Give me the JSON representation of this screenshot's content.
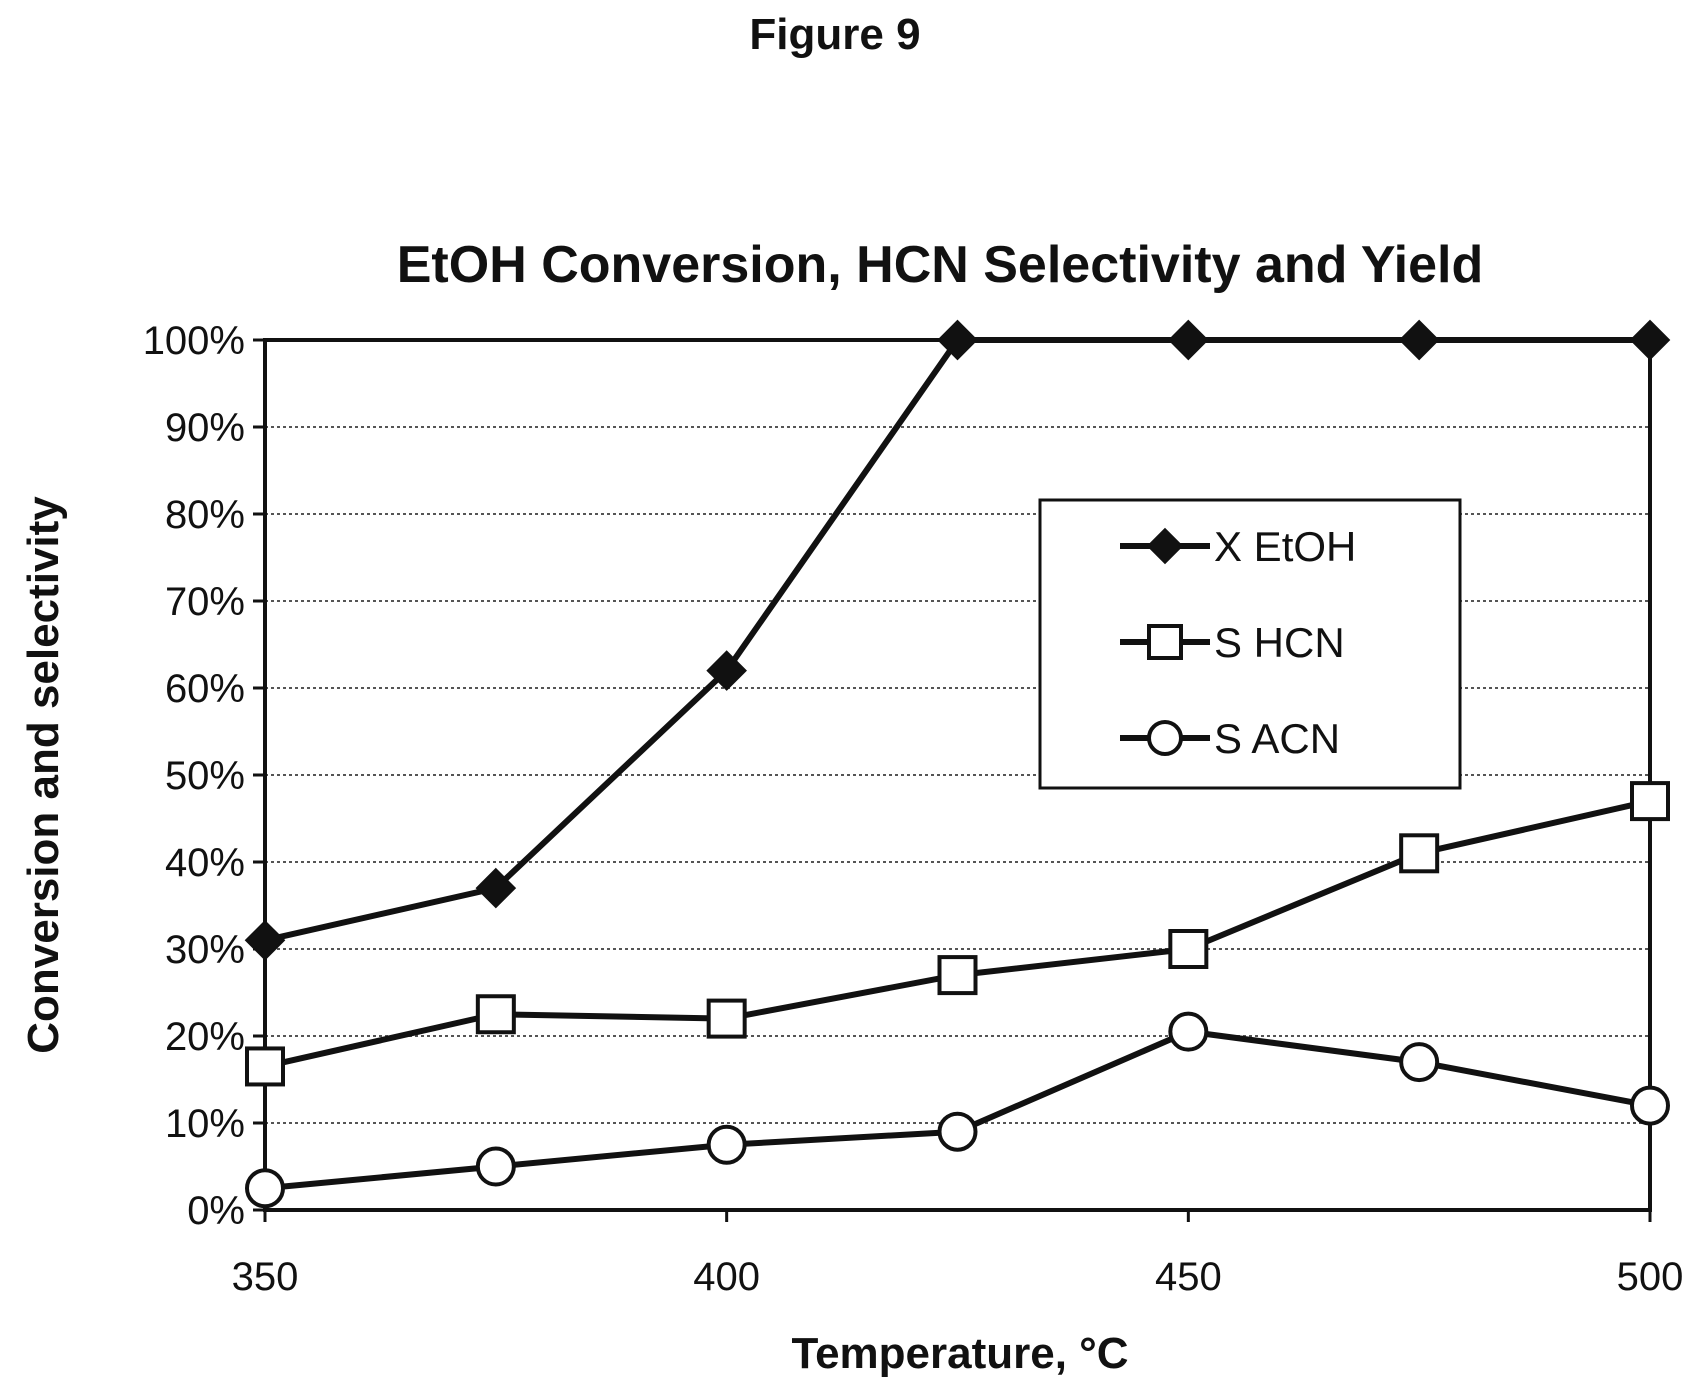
{
  "figure_label": "Figure 9",
  "chart_data": {
    "type": "line",
    "title": "EtOH Conversion, HCN Selectivity and Yield",
    "xlabel": "Temperature, °C",
    "ylabel": "Conversion and selectivity",
    "x": [
      350,
      375,
      400,
      425,
      450,
      475,
      500
    ],
    "xlim": [
      350,
      500
    ],
    "xticks": [
      350,
      400,
      450,
      500
    ],
    "ylim": [
      0,
      100
    ],
    "yticks": [
      0,
      10,
      20,
      30,
      40,
      50,
      60,
      70,
      80,
      90,
      100
    ],
    "ytick_labels": [
      "0%",
      "10%",
      "20%",
      "30%",
      "40%",
      "50%",
      "60%",
      "70%",
      "80%",
      "90%",
      "100%"
    ],
    "grid": true,
    "legend_position": "right-center",
    "series": [
      {
        "name": "X EtOH",
        "marker": "diamond-filled",
        "values": [
          31,
          37,
          62,
          100,
          100,
          100,
          100
        ]
      },
      {
        "name": "S HCN",
        "marker": "square-open",
        "values": [
          16.5,
          22.5,
          22,
          27,
          30,
          41,
          47
        ]
      },
      {
        "name": "S ACN",
        "marker": "circle-open",
        "values": [
          2.5,
          5,
          7.5,
          9,
          20.5,
          17,
          12
        ]
      }
    ]
  }
}
